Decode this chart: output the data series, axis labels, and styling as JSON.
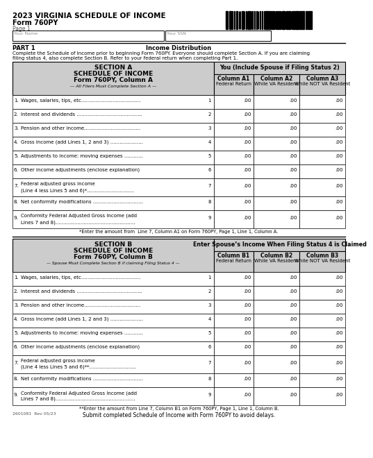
{
  "title_line1": "2023 VIRGINIA SCHEDULE OF INCOME",
  "title_line2": "Form 760PY",
  "title_line3": "Page 1",
  "your_name_label": "Your Name",
  "your_ssn_label": "Your SSN",
  "part1_label": "PART 1",
  "part1_title": "Income Distribution",
  "part1_desc_1": "Complete the Schedule of Income prior to beginning Form 760PY. Everyone should complete Section A. If you are claiming",
  "part1_desc_2": "filing status 4, also complete Section B. Refer to your federal return when completing Part 1.",
  "section_a_header1": "SECTION A",
  "section_a_header2": "SCHEDULE OF INCOME",
  "section_a_header3": "Form 760PY, Column A",
  "section_a_header4": "— All Filers Must Complete Section A —",
  "section_a_col_header": "You (Include Spouse if Filing Status 2)",
  "col_a1": "Column A1",
  "col_a1_sub": "Federal Return",
  "col_a2": "Column A2",
  "col_a2_sub": "While VA Resident",
  "col_a3": "Column A3",
  "col_a3_sub": "While NOT VA Resident",
  "section_b_header1": "SECTION B",
  "section_b_header2": "SCHEDULE OF INCOME",
  "section_b_header3": "Form 760PY, Column B",
  "section_b_header4": "— Spouse Must Complete Section B if claiming Filing Status 4 —",
  "section_b_col_header": "Enter Spouse’s Income When Filing Status 4 is Claimed",
  "col_b1": "Column B1",
  "col_b1_sub": "Federal Return",
  "col_b2": "Column B2",
  "col_b2_sub": "While VA Resident",
  "col_b3": "Column B3",
  "col_b3_sub": "While NOT VA Resident",
  "rows": [
    {
      "num": "1.",
      "label1": "Wages, salaries, tips, etc......................................",
      "label2": "",
      "line": "1"
    },
    {
      "num": "2.",
      "label1": "Interest and dividends ..........................................",
      "label2": "",
      "line": "2"
    },
    {
      "num": "3.",
      "label1": "Pension and other income....................................",
      "label2": "",
      "line": "3"
    },
    {
      "num": "4.",
      "label1": "Gross income (add Lines 1, 2 and 3) .....................",
      "label2": "",
      "line": "4"
    },
    {
      "num": "5.",
      "label1": "Adjustments to income: moving expenses ............",
      "label2": "",
      "line": "5"
    },
    {
      "num": "6.",
      "label1": "Other income adjustments (enclose explanation)",
      "label2": "",
      "line": "6"
    },
    {
      "num": "7.",
      "label1": "Federal adjusted gross income",
      "label2": "(Line 4 less Lines 5 and 6)*..............................",
      "line": "7"
    },
    {
      "num": "8.",
      "label1": "Net conformity modifications ................................",
      "label2": "",
      "line": "8"
    },
    {
      "num": "9.",
      "label1": "Conformity Federal Adjusted Gross Income (add",
      "label2": "Lines 7 and 8)...................................................",
      "line": "9"
    }
  ],
  "row_b7_label2": "(Line 4 less Lines 5 and 6)**..............................",
  "footnote_a": "*Enter the amount from  Line 7, Column A1 on Form 760PY, Page 1, Line 1, Column A.",
  "footnote_b1": "**Enter the amount from Line 7, Column B1 on Form 760PY, Page 1, Line 1, Column B.",
  "footnote_b2": "Submit completed Schedule of Income with Form 760PY to avoid delays.",
  "form_number": "2601081  Rev 05/23",
  "bg_color": "#ffffff",
  "header_bg": "#cccccc",
  "border_color": "#000000"
}
